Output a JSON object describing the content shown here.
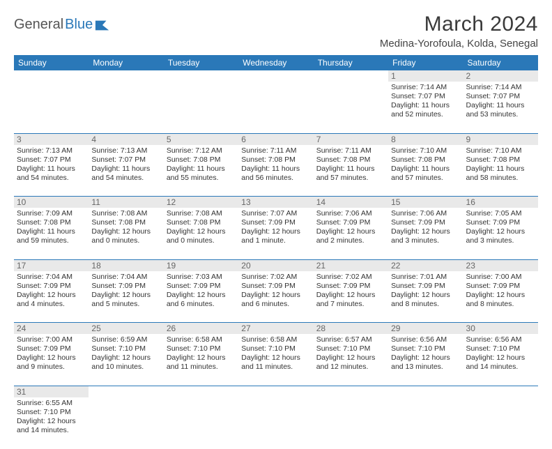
{
  "logo": {
    "text1": "General",
    "text2": "Blue"
  },
  "title": "March 2024",
  "location": "Medina-Yorofoula, Kolda, Senegal",
  "colors": {
    "header_bg": "#2a78b8",
    "header_fg": "#ffffff",
    "daynum_bg": "#e9e9e9",
    "daynum_fg": "#666666",
    "border": "#2a78b8",
    "text": "#333333"
  },
  "weekdays": [
    "Sunday",
    "Monday",
    "Tuesday",
    "Wednesday",
    "Thursday",
    "Friday",
    "Saturday"
  ],
  "weeks": [
    [
      null,
      null,
      null,
      null,
      null,
      {
        "n": "1",
        "sunrise": "Sunrise: 7:14 AM",
        "sunset": "Sunset: 7:07 PM",
        "daylight": "Daylight: 11 hours and 52 minutes."
      },
      {
        "n": "2",
        "sunrise": "Sunrise: 7:14 AM",
        "sunset": "Sunset: 7:07 PM",
        "daylight": "Daylight: 11 hours and 53 minutes."
      }
    ],
    [
      {
        "n": "3",
        "sunrise": "Sunrise: 7:13 AM",
        "sunset": "Sunset: 7:07 PM",
        "daylight": "Daylight: 11 hours and 54 minutes."
      },
      {
        "n": "4",
        "sunrise": "Sunrise: 7:13 AM",
        "sunset": "Sunset: 7:07 PM",
        "daylight": "Daylight: 11 hours and 54 minutes."
      },
      {
        "n": "5",
        "sunrise": "Sunrise: 7:12 AM",
        "sunset": "Sunset: 7:08 PM",
        "daylight": "Daylight: 11 hours and 55 minutes."
      },
      {
        "n": "6",
        "sunrise": "Sunrise: 7:11 AM",
        "sunset": "Sunset: 7:08 PM",
        "daylight": "Daylight: 11 hours and 56 minutes."
      },
      {
        "n": "7",
        "sunrise": "Sunrise: 7:11 AM",
        "sunset": "Sunset: 7:08 PM",
        "daylight": "Daylight: 11 hours and 57 minutes."
      },
      {
        "n": "8",
        "sunrise": "Sunrise: 7:10 AM",
        "sunset": "Sunset: 7:08 PM",
        "daylight": "Daylight: 11 hours and 57 minutes."
      },
      {
        "n": "9",
        "sunrise": "Sunrise: 7:10 AM",
        "sunset": "Sunset: 7:08 PM",
        "daylight": "Daylight: 11 hours and 58 minutes."
      }
    ],
    [
      {
        "n": "10",
        "sunrise": "Sunrise: 7:09 AM",
        "sunset": "Sunset: 7:08 PM",
        "daylight": "Daylight: 11 hours and 59 minutes."
      },
      {
        "n": "11",
        "sunrise": "Sunrise: 7:08 AM",
        "sunset": "Sunset: 7:08 PM",
        "daylight": "Daylight: 12 hours and 0 minutes."
      },
      {
        "n": "12",
        "sunrise": "Sunrise: 7:08 AM",
        "sunset": "Sunset: 7:08 PM",
        "daylight": "Daylight: 12 hours and 0 minutes."
      },
      {
        "n": "13",
        "sunrise": "Sunrise: 7:07 AM",
        "sunset": "Sunset: 7:09 PM",
        "daylight": "Daylight: 12 hours and 1 minute."
      },
      {
        "n": "14",
        "sunrise": "Sunrise: 7:06 AM",
        "sunset": "Sunset: 7:09 PM",
        "daylight": "Daylight: 12 hours and 2 minutes."
      },
      {
        "n": "15",
        "sunrise": "Sunrise: 7:06 AM",
        "sunset": "Sunset: 7:09 PM",
        "daylight": "Daylight: 12 hours and 3 minutes."
      },
      {
        "n": "16",
        "sunrise": "Sunrise: 7:05 AM",
        "sunset": "Sunset: 7:09 PM",
        "daylight": "Daylight: 12 hours and 3 minutes."
      }
    ],
    [
      {
        "n": "17",
        "sunrise": "Sunrise: 7:04 AM",
        "sunset": "Sunset: 7:09 PM",
        "daylight": "Daylight: 12 hours and 4 minutes."
      },
      {
        "n": "18",
        "sunrise": "Sunrise: 7:04 AM",
        "sunset": "Sunset: 7:09 PM",
        "daylight": "Daylight: 12 hours and 5 minutes."
      },
      {
        "n": "19",
        "sunrise": "Sunrise: 7:03 AM",
        "sunset": "Sunset: 7:09 PM",
        "daylight": "Daylight: 12 hours and 6 minutes."
      },
      {
        "n": "20",
        "sunrise": "Sunrise: 7:02 AM",
        "sunset": "Sunset: 7:09 PM",
        "daylight": "Daylight: 12 hours and 6 minutes."
      },
      {
        "n": "21",
        "sunrise": "Sunrise: 7:02 AM",
        "sunset": "Sunset: 7:09 PM",
        "daylight": "Daylight: 12 hours and 7 minutes."
      },
      {
        "n": "22",
        "sunrise": "Sunrise: 7:01 AM",
        "sunset": "Sunset: 7:09 PM",
        "daylight": "Daylight: 12 hours and 8 minutes."
      },
      {
        "n": "23",
        "sunrise": "Sunrise: 7:00 AM",
        "sunset": "Sunset: 7:09 PM",
        "daylight": "Daylight: 12 hours and 8 minutes."
      }
    ],
    [
      {
        "n": "24",
        "sunrise": "Sunrise: 7:00 AM",
        "sunset": "Sunset: 7:09 PM",
        "daylight": "Daylight: 12 hours and 9 minutes."
      },
      {
        "n": "25",
        "sunrise": "Sunrise: 6:59 AM",
        "sunset": "Sunset: 7:10 PM",
        "daylight": "Daylight: 12 hours and 10 minutes."
      },
      {
        "n": "26",
        "sunrise": "Sunrise: 6:58 AM",
        "sunset": "Sunset: 7:10 PM",
        "daylight": "Daylight: 12 hours and 11 minutes."
      },
      {
        "n": "27",
        "sunrise": "Sunrise: 6:58 AM",
        "sunset": "Sunset: 7:10 PM",
        "daylight": "Daylight: 12 hours and 11 minutes."
      },
      {
        "n": "28",
        "sunrise": "Sunrise: 6:57 AM",
        "sunset": "Sunset: 7:10 PM",
        "daylight": "Daylight: 12 hours and 12 minutes."
      },
      {
        "n": "29",
        "sunrise": "Sunrise: 6:56 AM",
        "sunset": "Sunset: 7:10 PM",
        "daylight": "Daylight: 12 hours and 13 minutes."
      },
      {
        "n": "30",
        "sunrise": "Sunrise: 6:56 AM",
        "sunset": "Sunset: 7:10 PM",
        "daylight": "Daylight: 12 hours and 14 minutes."
      }
    ],
    [
      {
        "n": "31",
        "sunrise": "Sunrise: 6:55 AM",
        "sunset": "Sunset: 7:10 PM",
        "daylight": "Daylight: 12 hours and 14 minutes."
      },
      null,
      null,
      null,
      null,
      null,
      null
    ]
  ]
}
